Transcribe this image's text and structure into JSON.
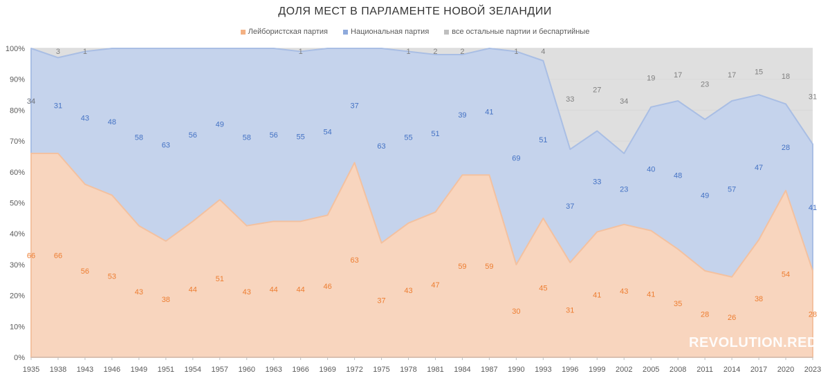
{
  "chart_data": {
    "type": "area",
    "title": "ДОЛЯ МЕСТ В ПАРЛАМЕНТЕ НОВОЙ ЗЕЛАНДИИ",
    "stacked": true,
    "percent": true,
    "x": [
      "1935",
      "1938",
      "1943",
      "1946",
      "1949",
      "1951",
      "1954",
      "1957",
      "1960",
      "1963",
      "1966",
      "1969",
      "1972",
      "1975",
      "1978",
      "1981",
      "1984",
      "1987",
      "1990",
      "1993",
      "1996",
      "1999",
      "2002",
      "2005",
      "2008",
      "2011",
      "2014",
      "2017",
      "2020",
      "2023"
    ],
    "series": [
      {
        "name": "Лейбористская партия",
        "color": "#F4B183",
        "values": [
          66,
          66,
          56,
          53,
          43,
          38,
          44,
          51,
          43,
          44,
          44,
          46,
          63,
          37,
          43,
          47,
          59,
          59,
          30,
          45,
          31,
          41,
          43,
          41,
          35,
          28,
          26,
          38,
          54,
          28
        ]
      },
      {
        "name": "Национальная партия",
        "color": "#8FAADC",
        "values": [
          34,
          31,
          43,
          48,
          58,
          63,
          56,
          49,
          58,
          56,
          55,
          54,
          37,
          63,
          55,
          51,
          39,
          41,
          69,
          51,
          37,
          33,
          23,
          40,
          48,
          49,
          57,
          47,
          28,
          41
        ]
      },
      {
        "name": "все остальные партии и беспартийные",
        "color": "#BFBFBF",
        "values": [
          null,
          3,
          1,
          null,
          null,
          null,
          null,
          null,
          null,
          null,
          1,
          null,
          null,
          null,
          1,
          2,
          2,
          null,
          1,
          4,
          33,
          27,
          34,
          19,
          17,
          23,
          17,
          15,
          18,
          31
        ]
      }
    ],
    "first_point_label": "34",
    "yaxis_ticks": [
      "0%",
      "10%",
      "20%",
      "30%",
      "40%",
      "50%",
      "60%",
      "70%",
      "80%",
      "90%",
      "100%"
    ],
    "ylim": [
      0,
      100
    ],
    "grid": true,
    "legend_position": "top"
  },
  "watermark": "REVOLUTION.RED"
}
